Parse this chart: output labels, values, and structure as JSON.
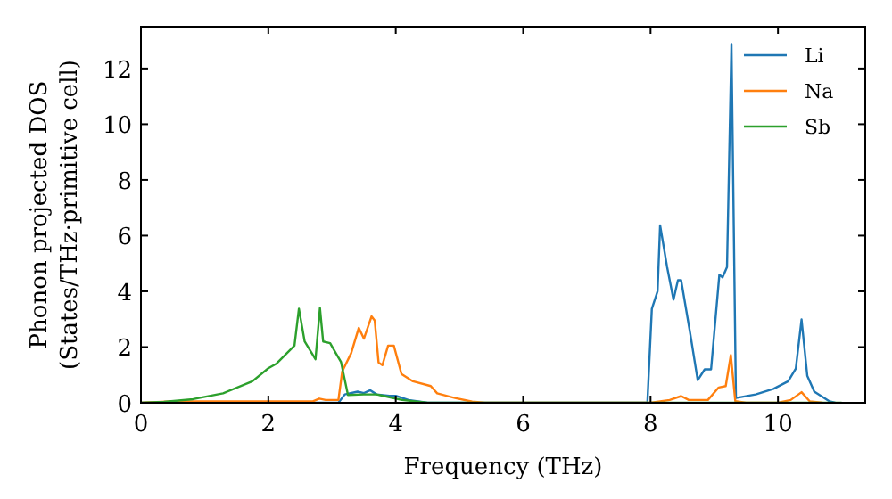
{
  "chart_data": {
    "type": "line",
    "xlabel": "Frequency (THz)",
    "ylabel": "Phonon projected DOS\n(States/THz·primitive cell)",
    "xlim": [
      0,
      11.37
    ],
    "ylim": [
      0,
      13.5
    ],
    "xticks": [
      0,
      2,
      4,
      6,
      8,
      10
    ],
    "yticks": [
      0,
      2,
      4,
      6,
      8,
      10,
      12
    ],
    "grid": false,
    "legend": "top right",
    "line_style": "solid",
    "series": [
      {
        "name": "Li",
        "color": "#1f77b4",
        "x": [
          0,
          3.1,
          3.2,
          3.4,
          3.5,
          3.6,
          3.7,
          3.9,
          4.0,
          4.2,
          4.5,
          7.95,
          8.02,
          8.11,
          8.15,
          8.26,
          8.36,
          8.43,
          8.48,
          8.62,
          8.74,
          8.85,
          8.95,
          9.08,
          9.13,
          9.2,
          9.27,
          9.34,
          9.65,
          9.93,
          10.16,
          10.28,
          10.37,
          10.46,
          10.57,
          10.81,
          10.9
        ],
        "values": [
          0,
          0,
          0.3,
          0.4,
          0.35,
          0.45,
          0.3,
          0.25,
          0.25,
          0.1,
          0,
          0,
          3.37,
          4.0,
          6.37,
          4.87,
          3.7,
          4.4,
          4.4,
          2.52,
          0.81,
          1.2,
          1.2,
          4.6,
          4.5,
          4.87,
          12.88,
          0.17,
          0.3,
          0.5,
          0.77,
          1.23,
          2.99,
          0.97,
          0.4,
          0.05,
          0
        ]
      },
      {
        "name": "Na",
        "color": "#ff7f0e",
        "x": [
          0,
          0.5,
          2.7,
          2.8,
          2.9,
          3.1,
          3.16,
          3.3,
          3.42,
          3.5,
          3.62,
          3.67,
          3.73,
          3.79,
          3.88,
          3.97,
          4.09,
          4.27,
          4.55,
          4.65,
          4.93,
          5.2,
          5.4,
          8.0,
          8.3,
          8.48,
          8.6,
          8.9,
          9.07,
          9.18,
          9.26,
          9.33,
          9.5,
          10.0,
          10.2,
          10.37,
          10.5,
          10.7
        ],
        "values": [
          0,
          0.05,
          0.05,
          0.15,
          0.1,
          0.1,
          1.13,
          1.78,
          2.69,
          2.3,
          3.1,
          2.95,
          1.45,
          1.35,
          2.05,
          2.05,
          1.03,
          0.77,
          0.6,
          0.34,
          0.17,
          0.04,
          0,
          0,
          0.1,
          0.24,
          0.1,
          0.1,
          0.55,
          0.6,
          1.71,
          0.06,
          0,
          0,
          0.1,
          0.38,
          0.05,
          0
        ]
      },
      {
        "name": "Sb",
        "color": "#2ca02c",
        "x": [
          0,
          0.36,
          0.82,
          1.29,
          1.75,
          2.0,
          2.13,
          2.41,
          2.48,
          2.57,
          2.74,
          2.81,
          2.86,
          2.97,
          3.06,
          3.14,
          3.25,
          3.5,
          3.7,
          3.9,
          4.1,
          4.5,
          11.0
        ],
        "values": [
          0,
          0.03,
          0.13,
          0.34,
          0.77,
          1.24,
          1.41,
          2.05,
          3.38,
          2.2,
          1.56,
          3.4,
          2.2,
          2.14,
          1.78,
          1.47,
          0.28,
          0.3,
          0.3,
          0.2,
          0.1,
          0,
          0
        ]
      }
    ]
  }
}
